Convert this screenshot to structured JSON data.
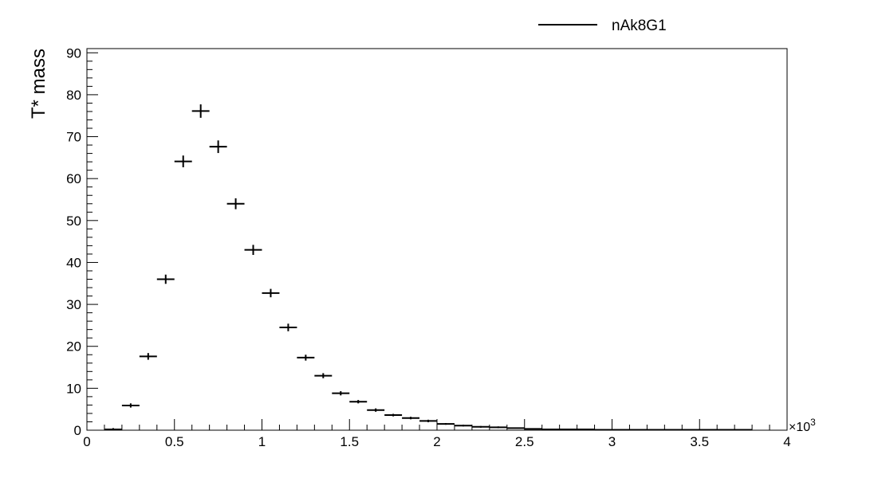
{
  "chart_data": {
    "type": "scatter",
    "ylabel": "T* mass",
    "x_multiplier": "×10",
    "x_multiplier_exp": "3",
    "xlim": [
      0,
      4
    ],
    "ylim": [
      0,
      91
    ],
    "x_ticks": [
      0,
      0.5,
      1,
      1.5,
      2,
      2.5,
      3,
      3.5,
      4
    ],
    "x_tick_labels": [
      "0",
      "0.5",
      "1",
      "1.5",
      "2",
      "2.5",
      "3",
      "3.5",
      "4"
    ],
    "y_ticks": [
      0,
      10,
      20,
      30,
      40,
      50,
      60,
      70,
      80,
      90
    ],
    "y_tick_labels": [
      "0",
      "10",
      "20",
      "30",
      "40",
      "50",
      "60",
      "70",
      "80",
      "90"
    ],
    "legend_position": "top-right",
    "series": [
      {
        "name": "nAk8G1",
        "color": "#000000",
        "bin_width": 0.1,
        "x": [
          0.15,
          0.25,
          0.35,
          0.45,
          0.55,
          0.65,
          0.75,
          0.85,
          0.95,
          1.05,
          1.15,
          1.25,
          1.35,
          1.45,
          1.55,
          1.65,
          1.75,
          1.85,
          1.95,
          2.05,
          2.15,
          2.25,
          2.35,
          2.45,
          2.55,
          2.65,
          2.75,
          2.85,
          2.95,
          3.05,
          3.15,
          3.25,
          3.35,
          3.45,
          3.55,
          3.65,
          3.75
        ],
        "y": [
          0.2,
          5.9,
          17.6,
          36.0,
          64.1,
          76.1,
          67.6,
          54.0,
          43.0,
          32.7,
          24.5,
          17.3,
          13.0,
          8.8,
          6.8,
          4.8,
          3.6,
          2.9,
          2.2,
          1.5,
          1.1,
          0.8,
          0.7,
          0.5,
          0.3,
          0.2,
          0.2,
          0.2,
          0.1,
          0.1,
          0.1,
          0.1,
          0.1,
          0.1,
          0.1,
          0.1,
          0.1
        ],
        "yerr": [
          0.3,
          0.5,
          0.8,
          1.1,
          1.4,
          1.6,
          1.5,
          1.3,
          1.2,
          1.0,
          0.9,
          0.7,
          0.6,
          0.5,
          0.4,
          0.4,
          0.3,
          0.3,
          0.3,
          0.2,
          0.2,
          0.2,
          0.2,
          0.1,
          0.1,
          0.1,
          0.1,
          0.1,
          0.1,
          0.1,
          0.1,
          0.1,
          0.1,
          0.1,
          0.1,
          0.1,
          0.1
        ]
      }
    ]
  }
}
